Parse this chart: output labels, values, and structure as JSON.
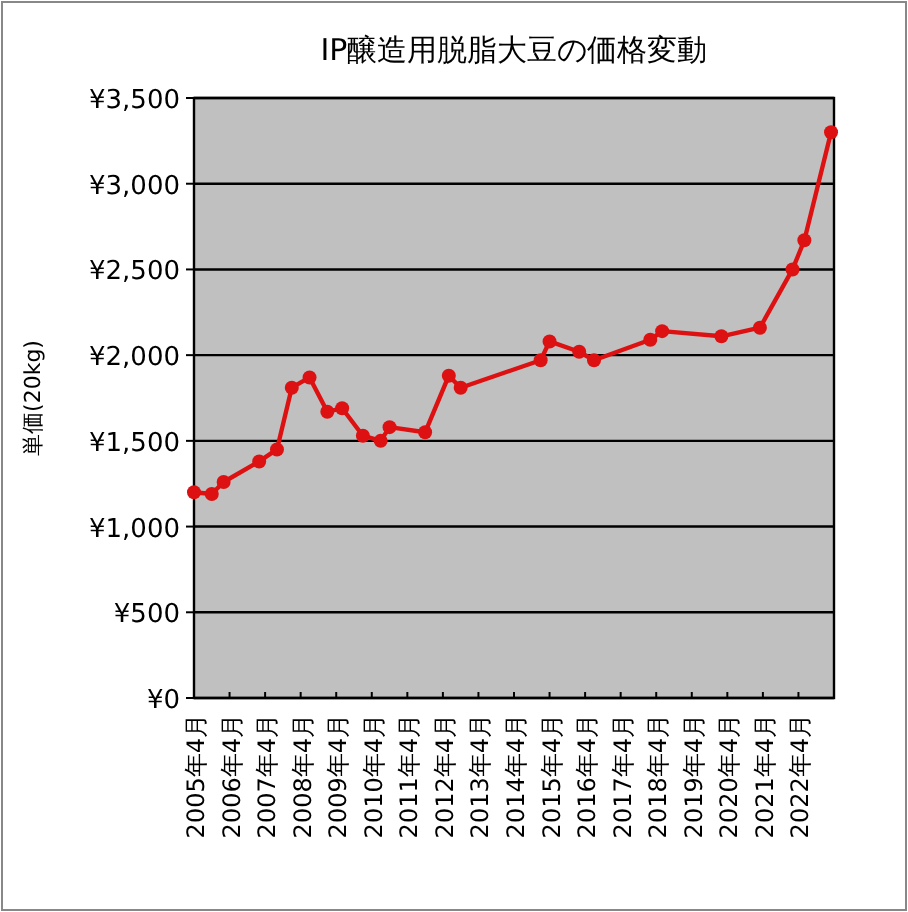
{
  "chart_data": {
    "type": "line",
    "title": "IP醸造用脱脂大豆の価格変動",
    "ylabel": "単価(20kg)",
    "x": [
      "2005-04",
      "2005-10",
      "2006-02",
      "2007-02",
      "2007-08",
      "2008-01",
      "2008-07",
      "2009-01",
      "2009-06",
      "2010-01",
      "2010-07",
      "2010-10",
      "2011-10",
      "2012-06",
      "2012-10",
      "2015-01",
      "2015-04",
      "2016-02",
      "2016-07",
      "2018-02",
      "2018-06",
      "2020-02",
      "2021-03",
      "2022-02",
      "2022-06",
      "2023-03"
    ],
    "series": [
      {
        "color": "#dd1111",
        "values": [
          1200,
          1190,
          1260,
          1380,
          1450,
          1810,
          1870,
          1670,
          1690,
          1530,
          1500,
          1580,
          1550,
          1880,
          1810,
          1970,
          2080,
          2020,
          1970,
          2090,
          2140,
          2110,
          2160,
          2500,
          2670,
          3300
        ]
      }
    ],
    "marker": "circle",
    "line_style": "solid",
    "grid": "y",
    "xlim": [
      "2005-04",
      "2023-04"
    ],
    "xticks": [
      {
        "value": "2005-04",
        "label": "2005年4月"
      },
      {
        "value": "2006-04",
        "label": "2006年4月"
      },
      {
        "value": "2007-04",
        "label": "2007年4月"
      },
      {
        "value": "2008-04",
        "label": "2008年4月"
      },
      {
        "value": "2009-04",
        "label": "2009年4月"
      },
      {
        "value": "2010-04",
        "label": "2010年4月"
      },
      {
        "value": "2011-04",
        "label": "2011年4月"
      },
      {
        "value": "2012-04",
        "label": "2012年4月"
      },
      {
        "value": "2013-04",
        "label": "2013年4月"
      },
      {
        "value": "2014-04",
        "label": "2014年4月"
      },
      {
        "value": "2015-04",
        "label": "2015年4月"
      },
      {
        "value": "2016-04",
        "label": "2016年4月"
      },
      {
        "value": "2017-04",
        "label": "2017年4月"
      },
      {
        "value": "2018-04",
        "label": "2018年4月"
      },
      {
        "value": "2019-04",
        "label": "2019年4月"
      },
      {
        "value": "2020-04",
        "label": "2020年4月"
      },
      {
        "value": "2021-04",
        "label": "2021年4月"
      },
      {
        "value": "2022-04",
        "label": "2022年4月"
      }
    ],
    "ylim": [
      0,
      3500
    ],
    "yticks": [
      {
        "value": 0,
        "label": "¥0"
      },
      {
        "value": 500,
        "label": "¥500"
      },
      {
        "value": 1000,
        "label": "¥1,000"
      },
      {
        "value": 1500,
        "label": "¥1,500"
      },
      {
        "value": 2000,
        "label": "¥2,000"
      },
      {
        "value": 2500,
        "label": "¥2,500"
      },
      {
        "value": 3000,
        "label": "¥3,000"
      },
      {
        "value": 3500,
        "label": "¥3,500"
      }
    ]
  }
}
